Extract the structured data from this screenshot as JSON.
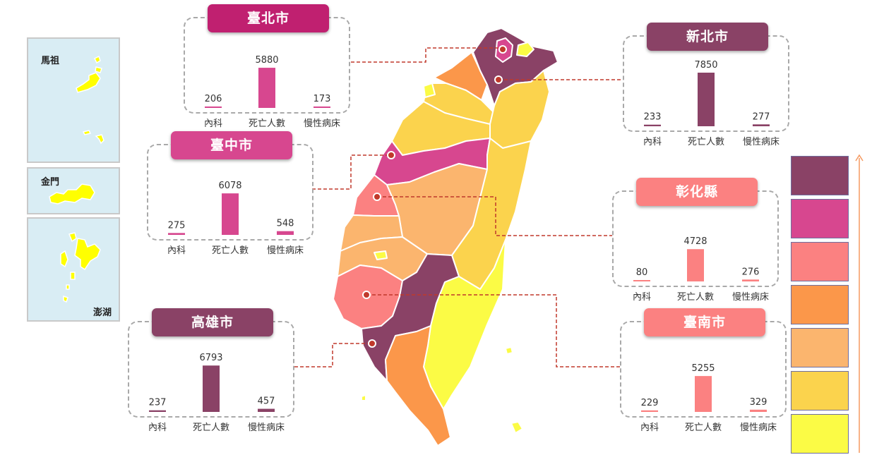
{
  "insets": [
    {
      "key": "matsu",
      "label": "馬祖"
    },
    {
      "key": "kinmen",
      "label": "金門"
    },
    {
      "key": "penghu",
      "label": "澎湖"
    }
  ],
  "colors": {
    "level1": "#8a4266",
    "level2": "#d7478f",
    "level3": "#fb8181",
    "level4": "#fb974a",
    "level5": "#fbb56e",
    "level6": "#fbd34d",
    "level7": "#fbfb45",
    "leader": "#c0392b",
    "arrow": "#f59a61"
  },
  "legend": [
    "level1",
    "level2",
    "level3",
    "level4",
    "level5",
    "level6",
    "level7"
  ],
  "chart_data": [
    {
      "type": "bar",
      "title": "臺北市",
      "categories": [
        "內科",
        "死亡人數",
        "慢性病床"
      ],
      "values": [
        206,
        5880,
        173
      ],
      "color": "#d7478f",
      "title_color": "#c02070"
    },
    {
      "type": "bar",
      "title": "新北市",
      "categories": [
        "內科",
        "死亡人數",
        "慢性病床"
      ],
      "values": [
        233,
        7850,
        277
      ],
      "color": "#8a4266",
      "title_color": "#8a4266"
    },
    {
      "type": "bar",
      "title": "臺中市",
      "categories": [
        "內科",
        "死亡人數",
        "慢性病床"
      ],
      "values": [
        275,
        6078,
        548
      ],
      "color": "#d7478f",
      "title_color": "#d7478f"
    },
    {
      "type": "bar",
      "title": "彰化縣",
      "categories": [
        "內科",
        "死亡人數",
        "慢性病床"
      ],
      "values": [
        80,
        4728,
        276
      ],
      "color": "#fb8181",
      "title_color": "#fb8181"
    },
    {
      "type": "bar",
      "title": "高雄市",
      "categories": [
        "內科",
        "死亡人數",
        "慢性病床"
      ],
      "values": [
        237,
        6793,
        457
      ],
      "color": "#8a4266",
      "title_color": "#8a4266"
    },
    {
      "type": "bar",
      "title": "臺南市",
      "categories": [
        "內科",
        "死亡人數",
        "慢性病床"
      ],
      "values": [
        229,
        5255,
        329
      ],
      "color": "#fb8181",
      "title_color": "#fb8181"
    }
  ]
}
